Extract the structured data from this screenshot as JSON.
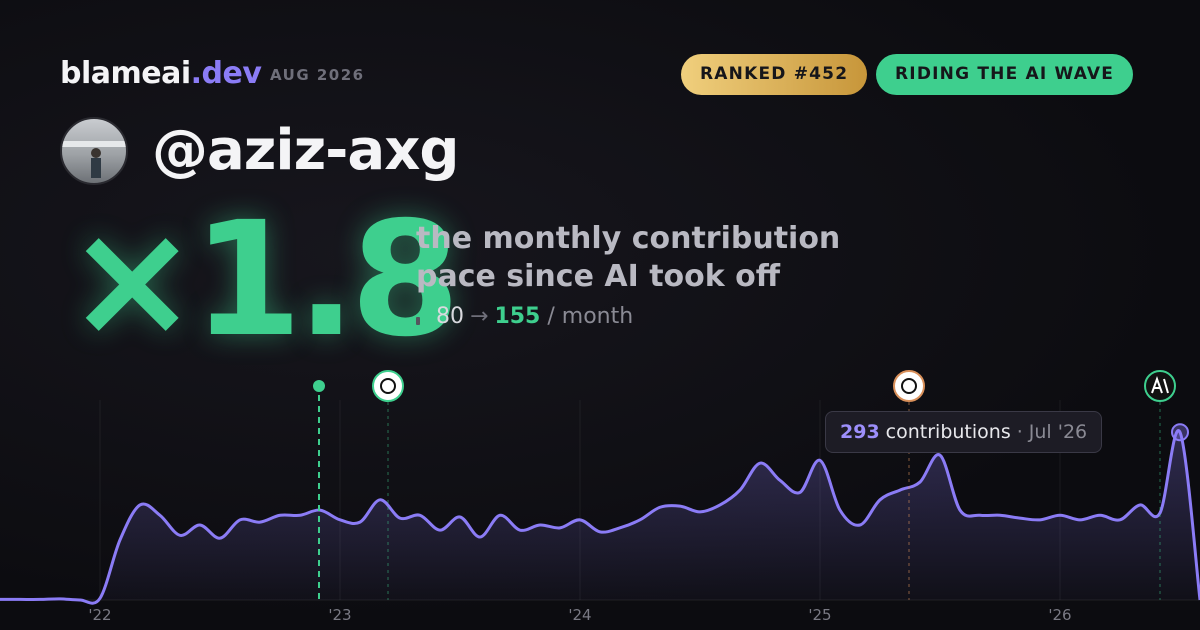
{
  "header": {
    "brand": "blameai",
    "brand_tld": ".dev",
    "date": "AUG 2026",
    "badges": [
      "RANKED #452",
      "RIDING THE AI WAVE"
    ],
    "handle": "@aziz-axg"
  },
  "headline": {
    "multiplier": "×1.8",
    "caption_lines": [
      "the monthly contribution",
      "pace since AI took off"
    ],
    "before": "80",
    "arrow": "→",
    "after": "155",
    "unit": "/ month"
  },
  "chart_data": {
    "type": "line",
    "color": "#8b7cf6",
    "categories": [
      null,
      null,
      null,
      null,
      null,
      "'22",
      null,
      null,
      null,
      null,
      null,
      null,
      null,
      null,
      null,
      null,
      null,
      "'23",
      null,
      null,
      null,
      null,
      null,
      null,
      null,
      null,
      null,
      null,
      null,
      "'24",
      null,
      null,
      null,
      null,
      null,
      null,
      null,
      null,
      null,
      null,
      null,
      "'25",
      null,
      null,
      null,
      null,
      null,
      null,
      null,
      null,
      null,
      null,
      null,
      "'26",
      null,
      null,
      null,
      null,
      null,
      null,
      null
    ],
    "values": [
      1,
      1,
      1,
      2,
      0,
      3,
      105,
      166,
      148,
      113,
      131,
      108,
      140,
      136,
      148,
      148,
      157,
      140,
      136,
      175,
      143,
      148,
      122,
      145,
      110,
      148,
      122,
      131,
      126,
      140,
      119,
      126,
      140,
      162,
      164,
      154,
      166,
      192,
      239,
      209,
      188,
      244,
      157,
      131,
      175,
      192,
      206,
      253,
      157,
      148,
      148,
      143,
      140,
      148,
      140,
      148,
      140,
      166,
      152,
      293,
      0
    ],
    "ylim": [
      0,
      400
    ],
    "tooltip": {
      "unit": "contributions",
      "separator": "·",
      "date": "Jul '26"
    }
  }
}
